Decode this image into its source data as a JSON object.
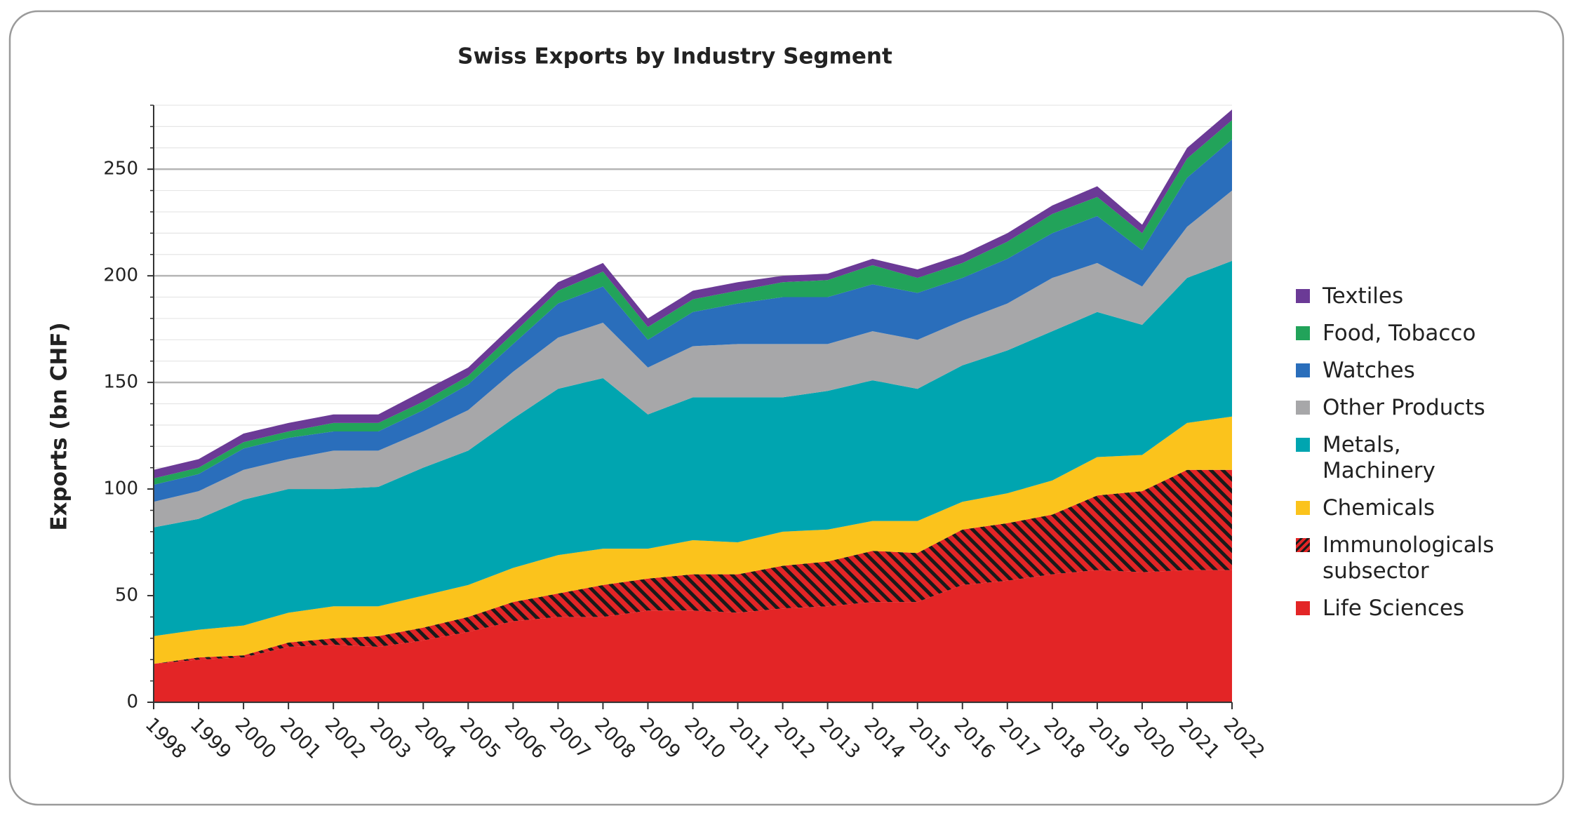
{
  "chart_data": {
    "type": "stacked_area",
    "title": "Swiss Exports by Industry Segment",
    "y_label": "Exports (bn CHF)",
    "categories": [
      "1998",
      "1999",
      "2000",
      "2001",
      "2002",
      "2003",
      "2004",
      "2005",
      "2006",
      "2007",
      "2008",
      "2009",
      "2010",
      "2011",
      "2012",
      "2013",
      "2014",
      "2015",
      "2016",
      "2017",
      "2018",
      "2019",
      "2020",
      "2021",
      "2022"
    ],
    "series": [
      {
        "name": "Life Sciences",
        "color": "#e32526",
        "values": [
          18,
          20,
          21,
          26,
          27,
          26,
          29,
          33,
          38,
          40,
          40,
          43,
          43,
          42,
          44,
          45,
          47,
          47,
          55,
          57,
          60,
          62,
          61,
          62,
          62
        ]
      },
      {
        "name": "Immunologicals subsector",
        "color": "#e32526",
        "hatch": true,
        "values": [
          0,
          1,
          1,
          2,
          3,
          5,
          6,
          7,
          9,
          11,
          15,
          15,
          17,
          18,
          20,
          21,
          24,
          23,
          26,
          27,
          28,
          35,
          38,
          47,
          47
        ]
      },
      {
        "name": "Chemicals",
        "color": "#fbc31c",
        "values": [
          13,
          13,
          14,
          14,
          15,
          14,
          15,
          15,
          16,
          18,
          17,
          14,
          16,
          15,
          16,
          15,
          14,
          15,
          13,
          14,
          16,
          18,
          17,
          22,
          25
        ]
      },
      {
        "name": "Metals, Machinery",
        "color": "#00a5b0",
        "values": [
          51,
          52,
          59,
          58,
          55,
          56,
          60,
          63,
          70,
          78,
          80,
          63,
          67,
          68,
          63,
          65,
          66,
          62,
          64,
          67,
          70,
          68,
          61,
          68,
          73
        ]
      },
      {
        "name": "Other Products",
        "color": "#a7a7a9",
        "values": [
          12,
          13,
          14,
          14,
          18,
          17,
          17,
          19,
          22,
          24,
          26,
          22,
          24,
          25,
          25,
          22,
          23,
          23,
          21,
          22,
          25,
          23,
          18,
          24,
          33
        ]
      },
      {
        "name": "Watches",
        "color": "#2a6ebb",
        "values": [
          8,
          8,
          10,
          10,
          9,
          9,
          10,
          12,
          13,
          16,
          17,
          13,
          16,
          19,
          22,
          22,
          22,
          22,
          20,
          21,
          21,
          22,
          17,
          23,
          24
        ]
      },
      {
        "name": "Food, Tobacco",
        "color": "#22a35a",
        "values": [
          3,
          3,
          3,
          3,
          4,
          4,
          4,
          4,
          5,
          6,
          7,
          6,
          6,
          6,
          7,
          8,
          9,
          7,
          7,
          8,
          9,
          9,
          8,
          9,
          9
        ]
      },
      {
        "name": "Textiles",
        "color": "#6b3a96",
        "values": [
          4,
          4,
          4,
          4,
          4,
          4,
          5,
          4,
          4,
          4,
          4,
          4,
          4,
          4,
          3,
          3,
          3,
          4,
          4,
          4,
          4,
          5,
          4,
          5,
          5
        ]
      }
    ],
    "ylim": [
      0,
      280
    ],
    "yticks": [
      0,
      50,
      100,
      150,
      200,
      250
    ],
    "grid": true,
    "minor_grid": true,
    "legend": "right"
  }
}
